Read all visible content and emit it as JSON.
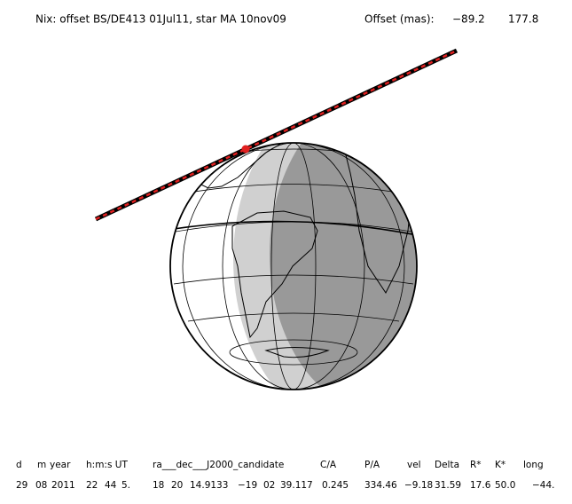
{
  "header": {
    "title": "Nix: offset BS/DE413 01Jul11, star MA 10nov09",
    "offset_label": "Offset (mas):",
    "offset_values": [
      "−89.2",
      "177.8"
    ]
  },
  "table": {
    "headers": [
      "d",
      "m",
      "year",
      "h:m:s UT",
      "ra___dec___J2000_candidate",
      "C/A",
      "P/A",
      "vel",
      "Delta",
      "R*",
      "K*",
      "long"
    ],
    "row": [
      "29",
      "08",
      "2011",
      "22",
      "44",
      "5.",
      "18",
      "20",
      "14.9133",
      "−19",
      "02",
      "39.117",
      "0.245",
      "334.46",
      "−9.18",
      "31.59",
      "17.6",
      "50.0",
      "−44."
    ]
  }
}
